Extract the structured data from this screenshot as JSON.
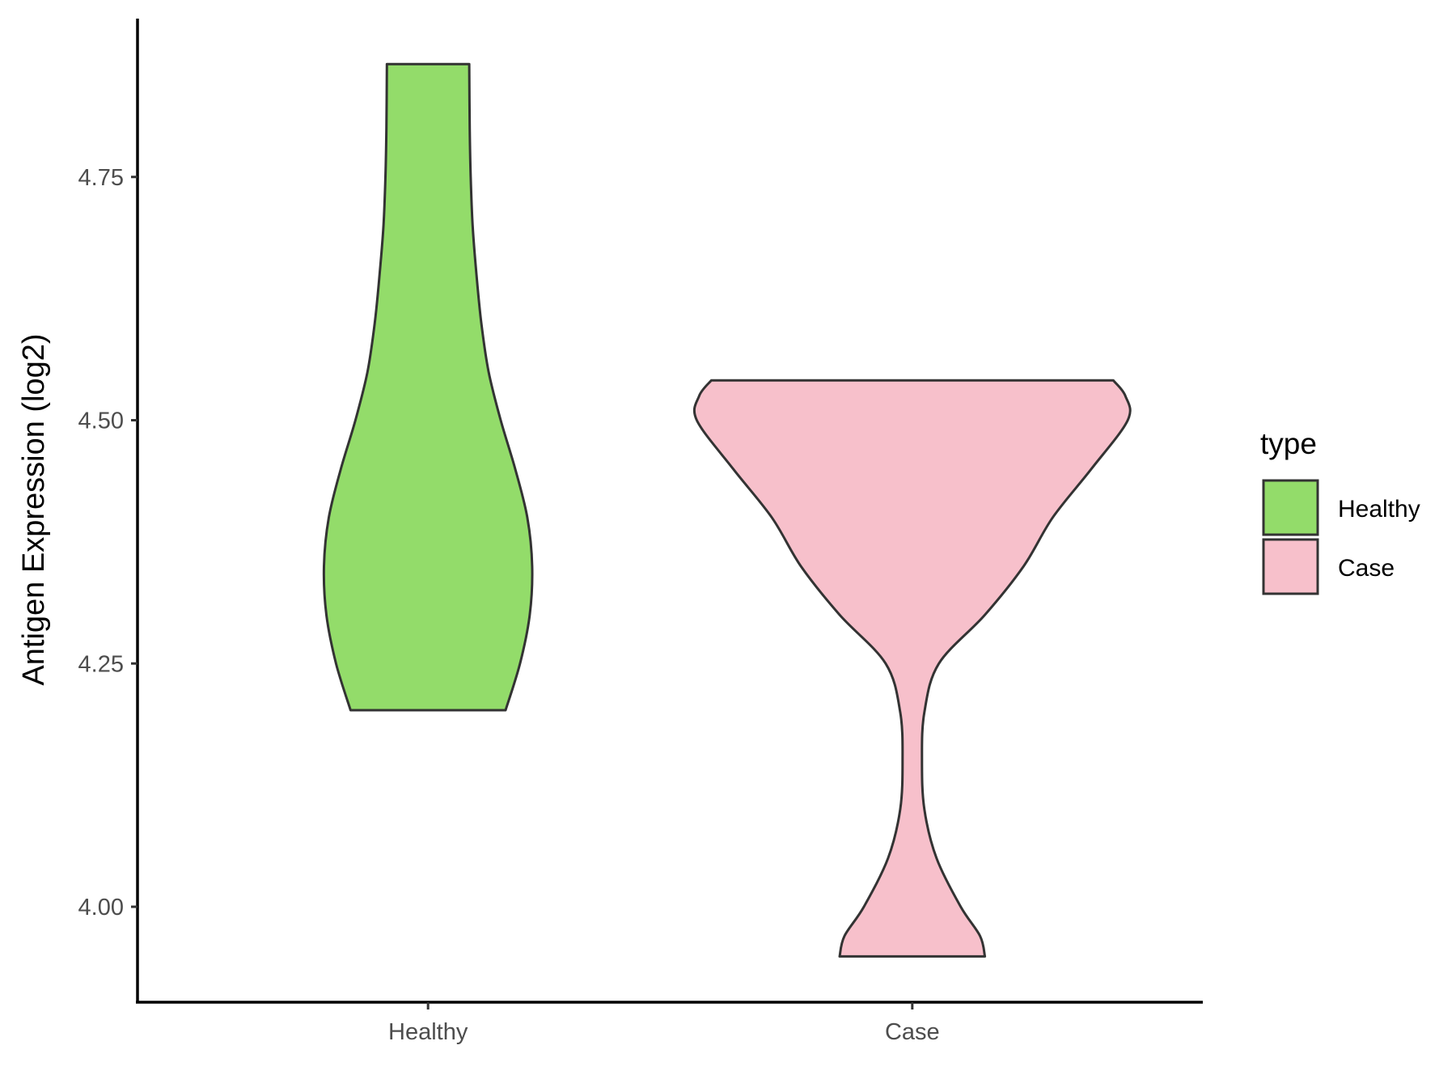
{
  "chart_data": {
    "type": "violin",
    "xlabel": "",
    "ylabel": "Antigen Expression (log2)",
    "categories": [
      "Healthy",
      "Case"
    ],
    "y_ticks": [
      "4.00",
      "4.25",
      "4.50",
      "4.75"
    ],
    "y_tick_values": [
      4.0,
      4.25,
      4.5,
      4.75
    ],
    "ylim": [
      3.9,
      4.91
    ],
    "grid": false,
    "legend": {
      "title": "type",
      "position": "right",
      "entries": [
        {
          "label": "Healthy",
          "color": "#93dc6a"
        },
        {
          "label": "Case",
          "color": "#f7c0cb"
        }
      ]
    },
    "series": [
      {
        "name": "Healthy",
        "color": "#93dc6a",
        "min": 4.202,
        "max": 4.866,
        "density_profile": [
          {
            "y": 4.202,
            "half_width": 0.16
          },
          {
            "y": 4.25,
            "half_width": 0.19
          },
          {
            "y": 4.3,
            "half_width": 0.21
          },
          {
            "y": 4.35,
            "half_width": 0.215
          },
          {
            "y": 4.4,
            "half_width": 0.205
          },
          {
            "y": 4.45,
            "half_width": 0.18
          },
          {
            "y": 4.5,
            "half_width": 0.15
          },
          {
            "y": 4.55,
            "half_width": 0.125
          },
          {
            "y": 4.6,
            "half_width": 0.11
          },
          {
            "y": 4.65,
            "half_width": 0.1
          },
          {
            "y": 4.7,
            "half_width": 0.092
          },
          {
            "y": 4.75,
            "half_width": 0.088
          },
          {
            "y": 4.8,
            "half_width": 0.086
          },
          {
            "y": 4.866,
            "half_width": 0.085
          }
        ]
      },
      {
        "name": "Case",
        "color": "#f7c0cb",
        "min": 3.949,
        "max": 4.541,
        "density_profile": [
          {
            "y": 3.949,
            "half_width": 0.15
          },
          {
            "y": 3.97,
            "half_width": 0.14
          },
          {
            "y": 4.0,
            "half_width": 0.1
          },
          {
            "y": 4.05,
            "half_width": 0.05
          },
          {
            "y": 4.1,
            "half_width": 0.025
          },
          {
            "y": 4.15,
            "half_width": 0.02
          },
          {
            "y": 4.2,
            "half_width": 0.025
          },
          {
            "y": 4.25,
            "half_width": 0.055
          },
          {
            "y": 4.3,
            "half_width": 0.15
          },
          {
            "y": 4.35,
            "half_width": 0.23
          },
          {
            "y": 4.4,
            "half_width": 0.29
          },
          {
            "y": 4.45,
            "half_width": 0.37
          },
          {
            "y": 4.5,
            "half_width": 0.445
          },
          {
            "y": 4.525,
            "half_width": 0.44
          },
          {
            "y": 4.541,
            "half_width": 0.415
          }
        ]
      }
    ]
  }
}
